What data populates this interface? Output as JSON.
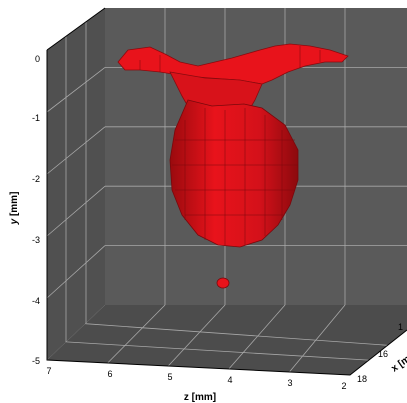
{
  "chart_data": {
    "type": "isosurface-3d",
    "ylabel_var": "y",
    "ylabel_unit": " [mm]",
    "xlabel": "z [mm]",
    "zlabel": "x [m",
    "y_ticks": [
      "0",
      "-1",
      "-2",
      "-3",
      "-4",
      "-5"
    ],
    "y_range": [
      -5,
      0
    ],
    "z_ticks": [
      "7",
      "6",
      "5",
      "4",
      "3",
      "2"
    ],
    "z_range": [
      7,
      2
    ],
    "x_ticks": [
      "18",
      "16",
      "1"
    ],
    "grid": true,
    "surface_color": "#e8131b",
    "wall_color": "#595959",
    "floor_color": "#4f4f4f",
    "grid_color": "#a8a8a8",
    "droplet": {
      "y": -4.1,
      "z": 4.5
    }
  }
}
